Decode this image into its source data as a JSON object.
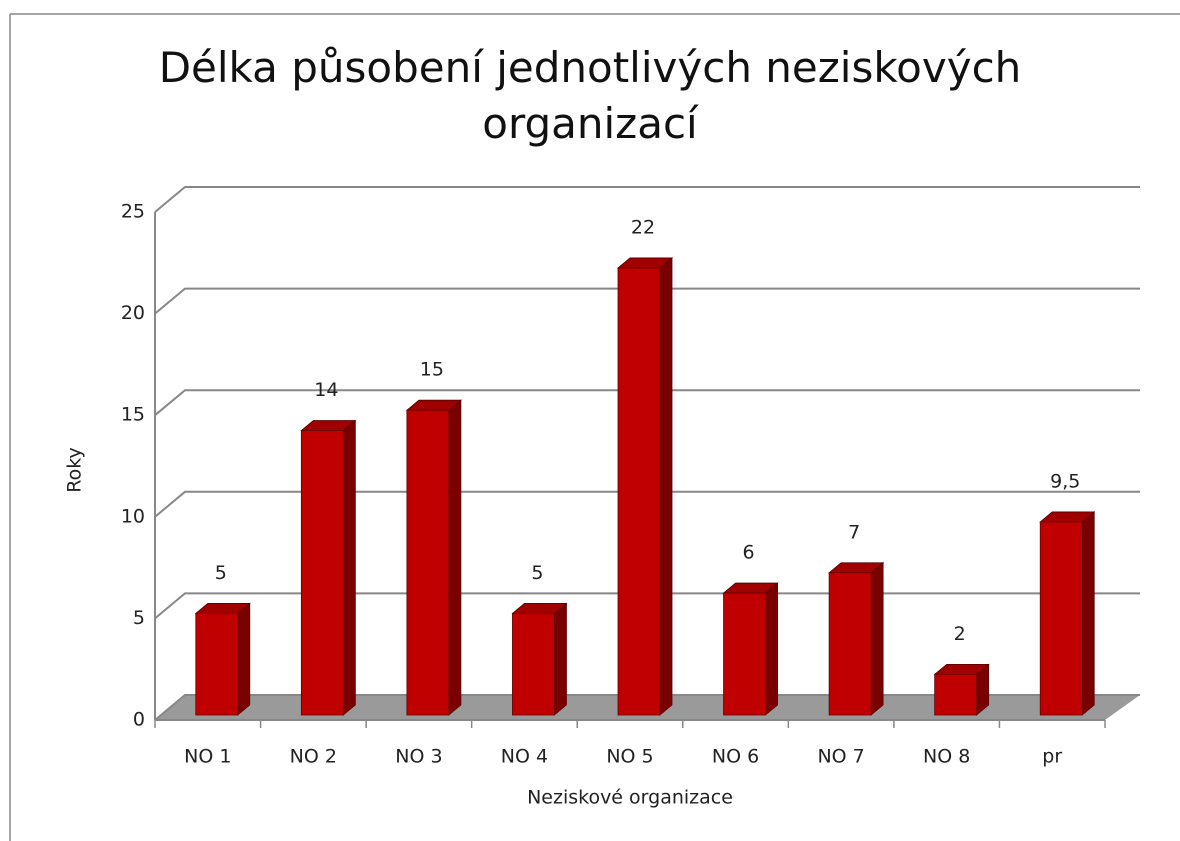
{
  "chart_data": {
    "type": "bar3d",
    "title": "Délka působení jednotlivých neziskových organizací",
    "x_label": "Neziskové organizace",
    "y_label": "Roky",
    "categories": [
      "NO 1",
      "NO 2",
      "NO 3",
      "NO 4",
      "NO 5",
      "NO 6",
      "NO 7",
      "NO 8",
      "pr"
    ],
    "values": [
      5,
      14,
      15,
      5,
      22,
      6,
      7,
      2,
      9.5
    ],
    "value_labels": [
      "5",
      "14",
      "15",
      "5",
      "22",
      "6",
      "7",
      "2",
      "9,5"
    ],
    "color": "#c00000",
    "ylim": [
      0,
      25
    ],
    "yticks": [
      0,
      5,
      10,
      15,
      20,
      25
    ],
    "grid": true
  }
}
